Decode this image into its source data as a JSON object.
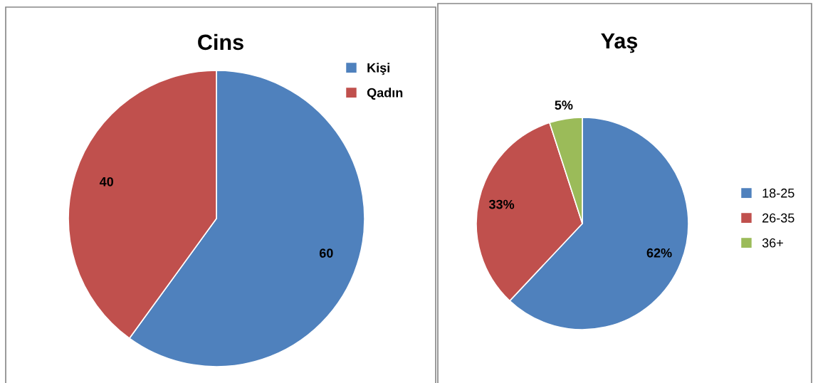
{
  "chart_data": [
    {
      "type": "pie",
      "title": "Cins",
      "categories": [
        "Kişi",
        "Qadın"
      ],
      "values": [
        60,
        40
      ],
      "colors": [
        "#4f81bd",
        "#c0504d"
      ],
      "data_labels": true,
      "legend": "top right"
    },
    {
      "type": "pie",
      "title": "Yaş",
      "categories": [
        "18-25",
        "26-35",
        "36+"
      ],
      "values": [
        62,
        33,
        5
      ],
      "colors": [
        "#4f81bd",
        "#c0504d",
        "#9bbb59"
      ],
      "value_labels": [
        "62%",
        "33%",
        "5%"
      ],
      "legend": "right"
    }
  ]
}
